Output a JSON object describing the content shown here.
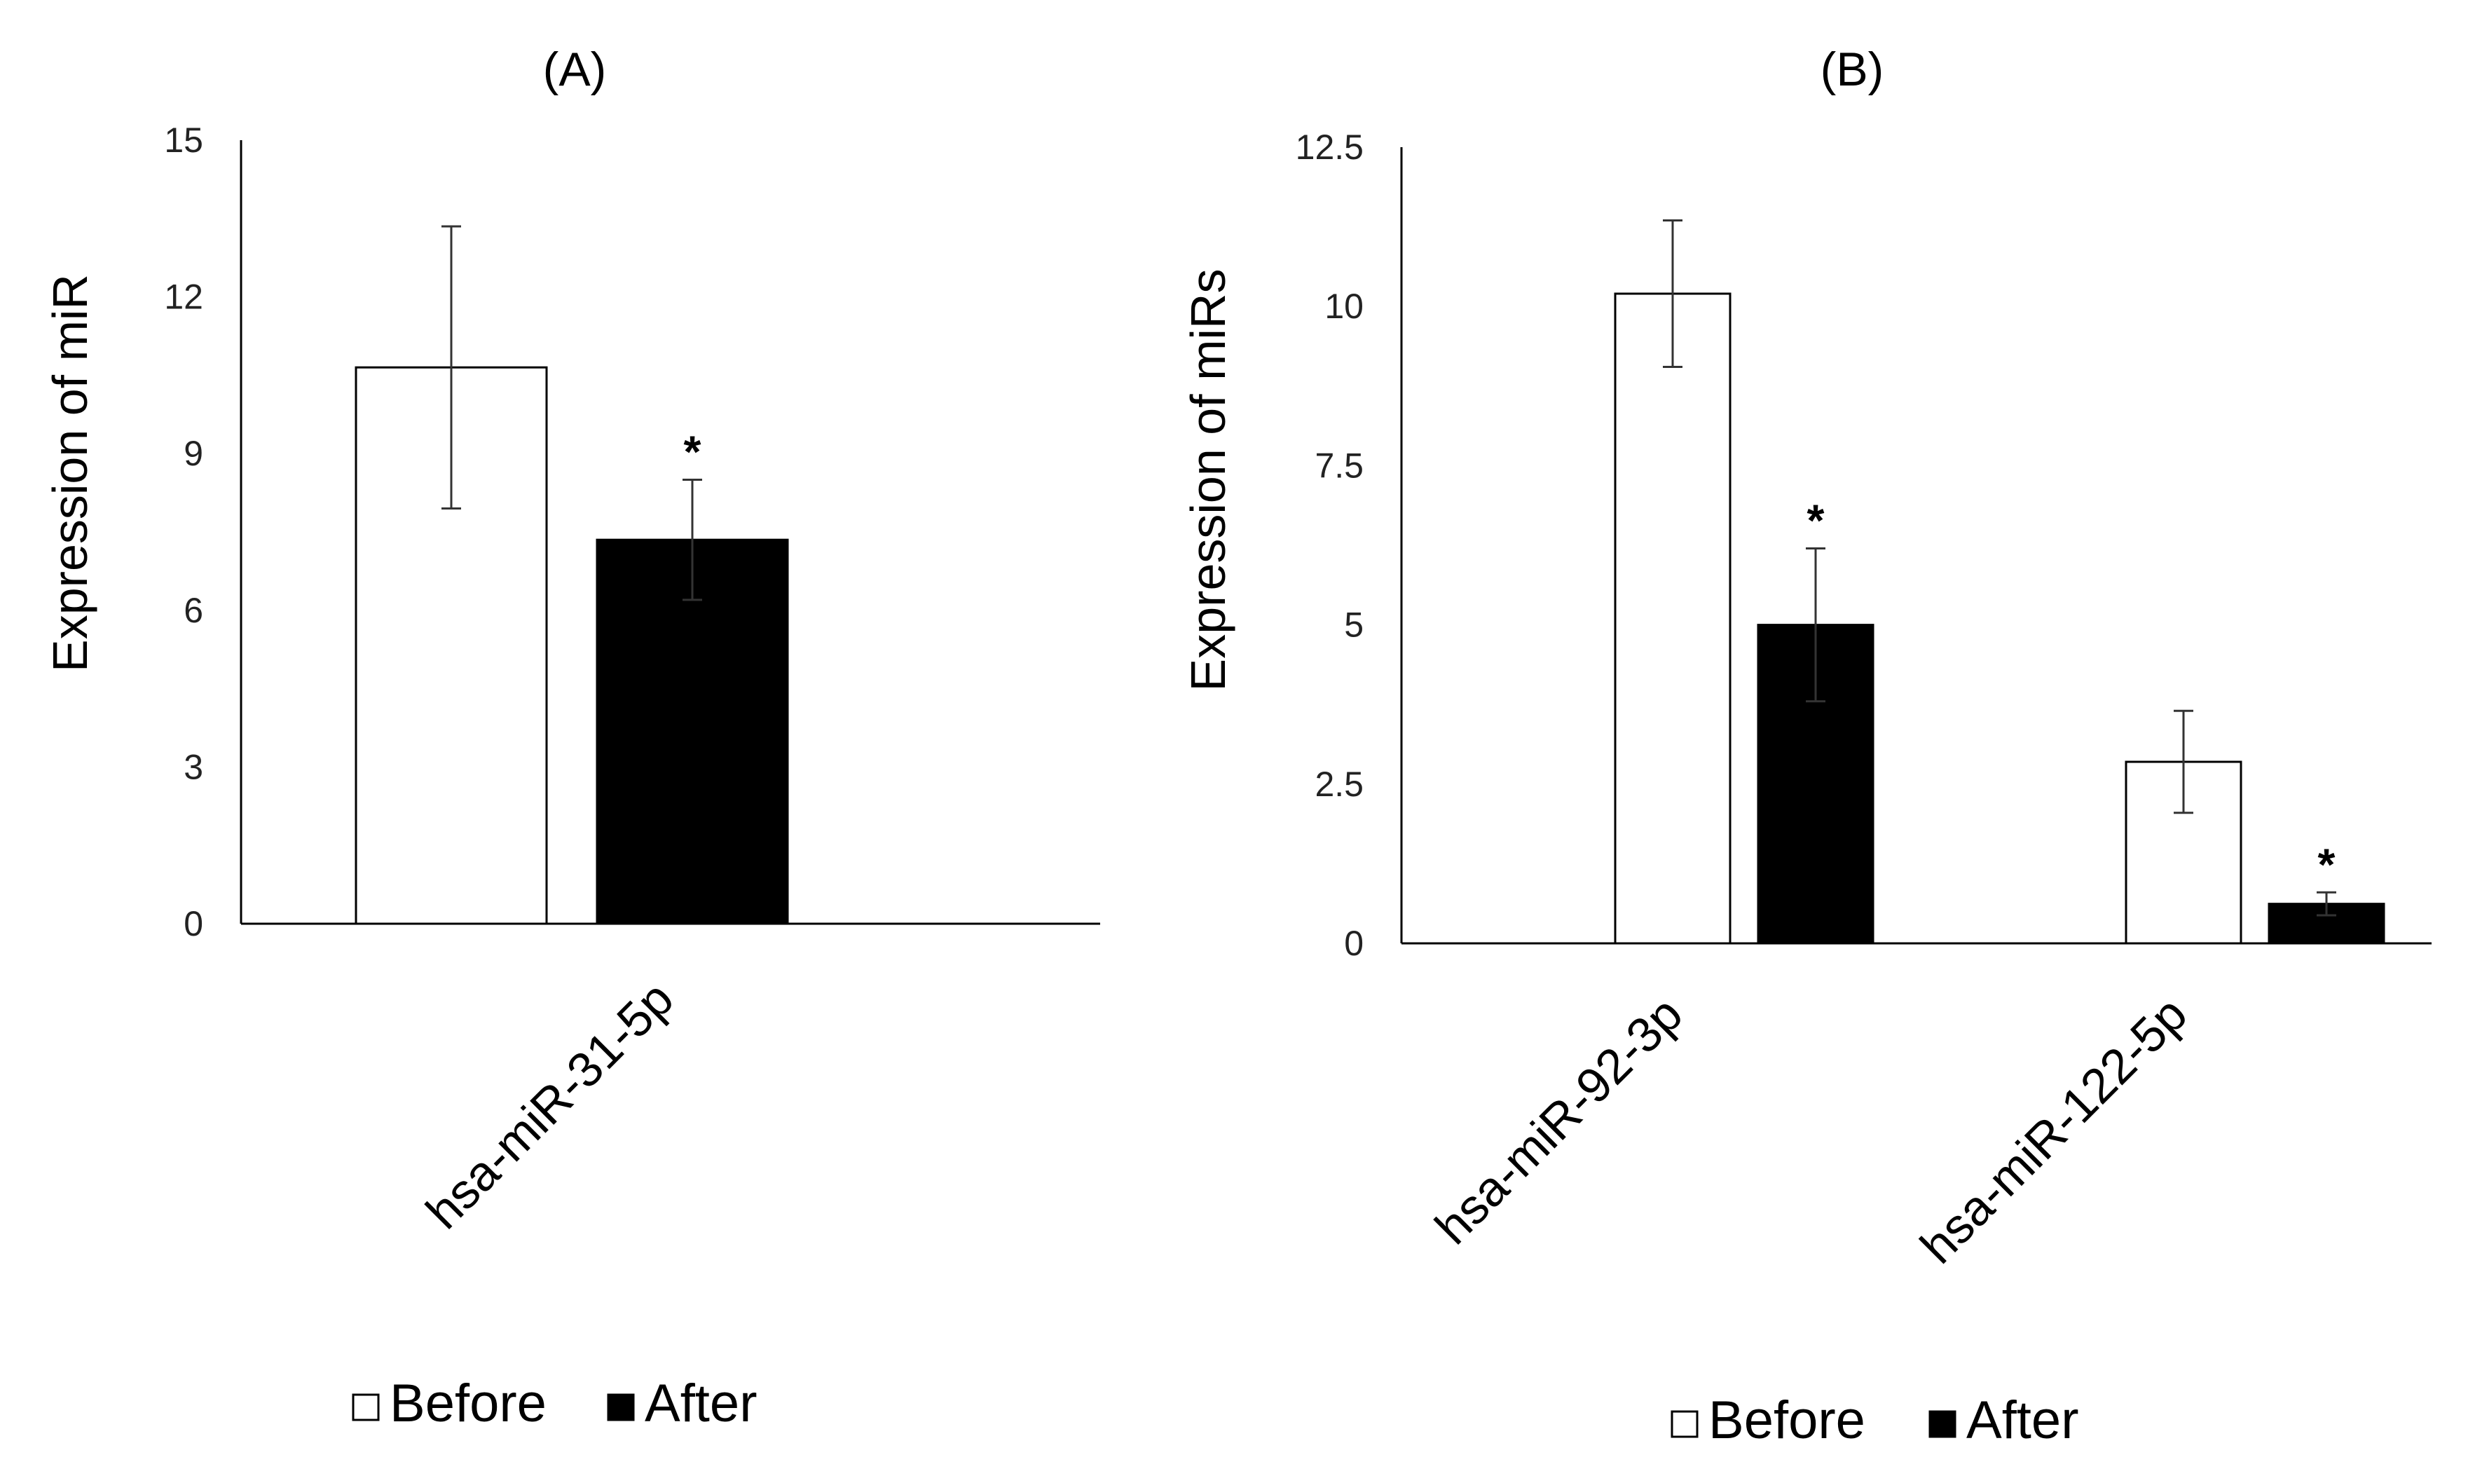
{
  "chart_data": [
    {
      "type": "bar",
      "title": "(A)",
      "xlabel": "",
      "ylabel": "Expression of miR",
      "ylim": [
        0,
        15
      ],
      "yticks": [
        0,
        3,
        6,
        9,
        12,
        15
      ],
      "ytick_labels": [
        "0",
        "3",
        "6",
        "9",
        "12",
        "15"
      ],
      "categories": [
        "hsa-miR-31-5p"
      ],
      "series": [
        {
          "name": "Before",
          "color": "#ffffff",
          "values": [
            10.65
          ],
          "error": [
            2.7
          ],
          "significance": [
            ""
          ]
        },
        {
          "name": "After",
          "color": "#000000",
          "values": [
            7.35
          ],
          "error": [
            1.15
          ],
          "significance": [
            "*"
          ]
        }
      ],
      "legend": {
        "entries": [
          "Before",
          "After"
        ],
        "position": "bottom"
      },
      "grid": false
    },
    {
      "type": "bar",
      "title": "(B)",
      "xlabel": "",
      "ylabel": "Expression of miRs",
      "ylim": [
        0,
        12.5
      ],
      "yticks": [
        0,
        2.5,
        5,
        7.5,
        10,
        12.5
      ],
      "ytick_labels": [
        "0",
        "2.5",
        "5",
        "7.5",
        "10",
        "12.5"
      ],
      "categories": [
        "hsa-miR-92-3p",
        "hsa-miR-122-5p"
      ],
      "series": [
        {
          "name": "Before",
          "color": "#ffffff",
          "values": [
            10.2,
            2.85
          ],
          "error": [
            1.15,
            0.8
          ],
          "significance": [
            "",
            ""
          ]
        },
        {
          "name": "After",
          "color": "#000000",
          "values": [
            5.0,
            0.62
          ],
          "error": [
            1.2,
            0.18
          ],
          "significance": [
            "*",
            "*"
          ]
        }
      ],
      "legend": {
        "entries": [
          "Before",
          "After"
        ],
        "position": "bottom"
      },
      "grid": false
    }
  ]
}
